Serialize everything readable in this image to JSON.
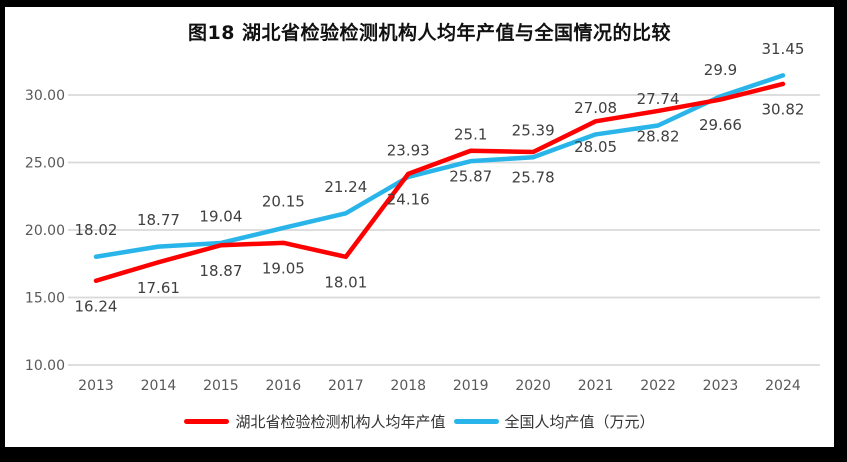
{
  "chart_data": {
    "type": "line",
    "title": "图18  湖北省检验检测机构人均年产值与全国情况的比较",
    "categories": [
      "2013",
      "2014",
      "2015",
      "2016",
      "2017",
      "2018",
      "2019",
      "2020",
      "2021",
      "2022",
      "2023",
      "2024"
    ],
    "series": [
      {
        "name": "湖北省检验检测机构人均年产值",
        "color": "#FF0000",
        "values": [
          16.24,
          17.61,
          18.87,
          19.05,
          18.01,
          24.16,
          25.87,
          25.78,
          28.05,
          28.82,
          29.66,
          30.82
        ],
        "labels": [
          "16.24",
          "17.61",
          "18.87",
          "19.05",
          "18.01",
          "24.16",
          "25.87",
          "25.78",
          "28.05",
          "28.82",
          "29.66",
          "30.82"
        ],
        "label_position": "below"
      },
      {
        "name": "全国人均产值（万元）",
        "color": "#29B5E9",
        "values": [
          18.02,
          18.77,
          19.04,
          20.15,
          21.24,
          23.93,
          25.1,
          25.39,
          27.08,
          27.74,
          29.9,
          31.45
        ],
        "labels": [
          "18.02",
          "18.77",
          "19.04",
          "20.15",
          "21.24",
          "23.93",
          "25.1",
          "25.39",
          "27.08",
          "27.74",
          "29.9",
          "31.45"
        ],
        "label_position": "above"
      }
    ],
    "y_axis": {
      "ticks": [
        "30.00",
        "25.00",
        "20.00",
        "15.00",
        "10.00"
      ],
      "tick_values": [
        30,
        25,
        20,
        15,
        10
      ],
      "ylim": [
        10,
        30
      ]
    },
    "grid": true,
    "legend_position": "bottom",
    "colors": {
      "gridline": "#D9D9D9",
      "axis_text": "#595959",
      "data_label_text": "#404040",
      "background": "#FFFFFF",
      "frame": "#000000"
    }
  }
}
